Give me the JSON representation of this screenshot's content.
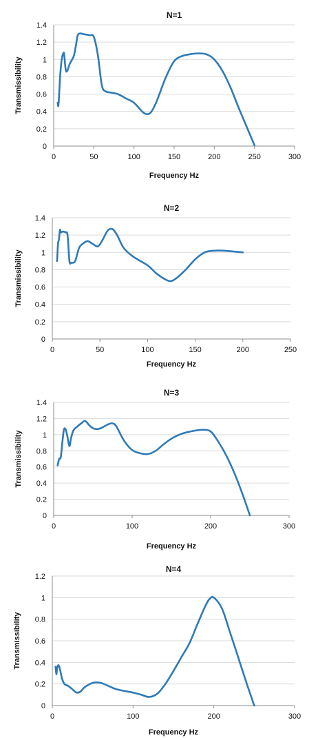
{
  "chart_data": [
    {
      "type": "line",
      "title": "N=1",
      "xlabel": "Frequency Hz",
      "ylabel": "Transmissibility",
      "xlim": [
        0,
        300
      ],
      "ylim": [
        0,
        1.4
      ],
      "x_ticks": [
        "0",
        "50",
        "100",
        "150",
        "200",
        "250",
        "300"
      ],
      "y_ticks": [
        "0",
        "0.2",
        "0.4",
        "0.6",
        "0.8",
        "1",
        "1.2",
        "1.4"
      ],
      "grid": "horizontal",
      "legend": "none",
      "color": "#2e7ab8",
      "series": [
        {
          "x": [
            5,
            6,
            8,
            10,
            12,
            13,
            15,
            17,
            20,
            25,
            28,
            30,
            33,
            38,
            45,
            50,
            55,
            60,
            65,
            70,
            80,
            90,
            100,
            110,
            115,
            120,
            125,
            130,
            140,
            150,
            160,
            170,
            180,
            190,
            200,
            210,
            220,
            230,
            240,
            250
          ],
          "y": [
            0.5,
            0.48,
            0.8,
            1.0,
            1.07,
            1.06,
            0.88,
            0.87,
            0.95,
            1.04,
            1.18,
            1.28,
            1.3,
            1.29,
            1.28,
            1.26,
            1.05,
            0.7,
            0.63,
            0.62,
            0.6,
            0.55,
            0.5,
            0.4,
            0.37,
            0.38,
            0.45,
            0.56,
            0.8,
            0.98,
            1.04,
            1.06,
            1.07,
            1.06,
            1.0,
            0.87,
            0.68,
            0.45,
            0.23,
            0.01
          ]
        }
      ]
    },
    {
      "type": "line",
      "title": "N=2",
      "xlabel": "Frequency Hz",
      "ylabel": "Transmissibility",
      "xlim": [
        0,
        250
      ],
      "ylim": [
        0,
        1.4
      ],
      "x_ticks": [
        "0",
        "50",
        "100",
        "150",
        "200",
        "250"
      ],
      "y_ticks": [
        "0",
        "0.2",
        "0.4",
        "0.6",
        "0.8",
        "1",
        "1.2",
        "1.4"
      ],
      "grid": "horizontal",
      "legend": "none",
      "color": "#2e7ab8",
      "series": [
        {
          "x": [
            5,
            6,
            7,
            8,
            9,
            11,
            14,
            16,
            18,
            20,
            24,
            28,
            32,
            37,
            42,
            48,
            53,
            58,
            63,
            68,
            75,
            85,
            100,
            110,
            120,
            125,
            130,
            140,
            150,
            160,
            170,
            180,
            190,
            200
          ],
          "y": [
            0.9,
            1.1,
            1.15,
            1.26,
            1.23,
            1.24,
            1.23,
            1.2,
            0.9,
            0.88,
            0.9,
            1.05,
            1.1,
            1.13,
            1.1,
            1.07,
            1.15,
            1.25,
            1.27,
            1.2,
            1.05,
            0.95,
            0.85,
            0.75,
            0.68,
            0.67,
            0.7,
            0.8,
            0.92,
            1.0,
            1.02,
            1.02,
            1.01,
            1.0
          ]
        }
      ]
    },
    {
      "type": "line",
      "title": "N=3",
      "xlabel": "Frequency Hz",
      "ylabel": "Transmissibility",
      "xlim": [
        0,
        300
      ],
      "ylim": [
        0,
        1.4
      ],
      "x_ticks": [
        "0",
        "100",
        "200",
        "300"
      ],
      "y_ticks": [
        "0",
        "0.2",
        "0.4",
        "0.6",
        "0.8",
        "1",
        "1.2",
        "1.4"
      ],
      "grid": "horizontal",
      "legend": "none",
      "color": "#2e7ab8",
      "series": [
        {
          "x": [
            5,
            7,
            9,
            11,
            13,
            15,
            17,
            20,
            22,
            25,
            30,
            35,
            40,
            45,
            50,
            55,
            60,
            70,
            75,
            80,
            90,
            100,
            110,
            120,
            130,
            140,
            150,
            160,
            170,
            180,
            190,
            200,
            210,
            220,
            230,
            240,
            250
          ],
          "y": [
            0.62,
            0.7,
            0.72,
            0.9,
            1.06,
            1.07,
            1.0,
            0.86,
            0.95,
            1.05,
            1.1,
            1.14,
            1.17,
            1.12,
            1.08,
            1.07,
            1.08,
            1.13,
            1.14,
            1.1,
            0.92,
            0.81,
            0.77,
            0.76,
            0.8,
            0.88,
            0.95,
            1.0,
            1.03,
            1.05,
            1.06,
            1.04,
            0.91,
            0.74,
            0.53,
            0.28,
            0.0
          ]
        }
      ]
    },
    {
      "type": "line",
      "title": "N=4",
      "xlabel": "Frequency Hz",
      "ylabel": "Transmissibility",
      "xlim": [
        0,
        300
      ],
      "ylim": [
        0,
        1.2
      ],
      "x_ticks": [
        "0",
        "100",
        "200",
        "300"
      ],
      "y_ticks": [
        "0",
        "0.2",
        "0.4",
        "0.6",
        "0.8",
        "1",
        "1.2"
      ],
      "grid": "horizontal",
      "legend": "none",
      "color": "#2e7ab8",
      "series": [
        {
          "x": [
            4,
            5,
            6,
            7,
            8,
            10,
            12,
            15,
            20,
            25,
            30,
            35,
            40,
            50,
            60,
            70,
            80,
            100,
            110,
            120,
            130,
            140,
            150,
            160,
            170,
            180,
            190,
            195,
            200,
            210,
            220,
            230,
            240,
            250
          ],
          "y": [
            0.36,
            0.29,
            0.35,
            0.37,
            0.37,
            0.32,
            0.25,
            0.2,
            0.18,
            0.15,
            0.12,
            0.13,
            0.17,
            0.21,
            0.21,
            0.18,
            0.15,
            0.12,
            0.1,
            0.08,
            0.11,
            0.2,
            0.32,
            0.45,
            0.58,
            0.76,
            0.93,
            0.99,
            1.0,
            0.9,
            0.68,
            0.45,
            0.22,
            0.0
          ]
        }
      ]
    }
  ]
}
